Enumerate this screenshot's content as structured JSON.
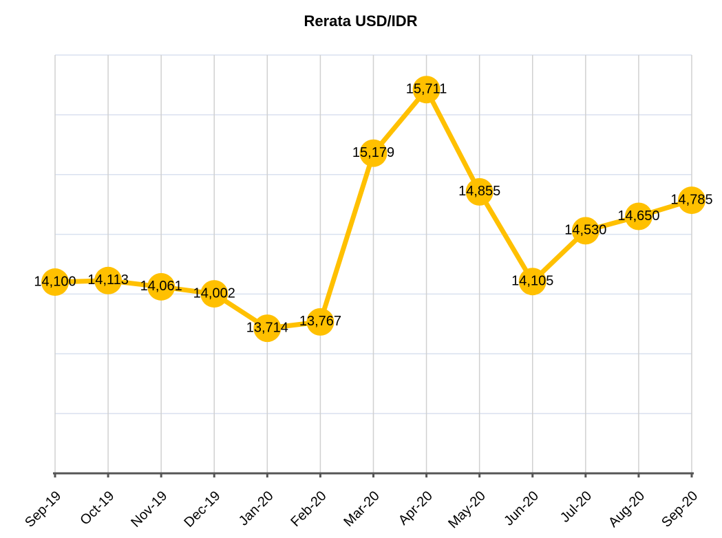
{
  "chart_data": {
    "type": "line",
    "title": "Rerata USD/IDR",
    "categories": [
      "Sep-19",
      "Oct-19",
      "Nov-19",
      "Dec-19",
      "Jan-20",
      "Feb-20",
      "Mar-20",
      "Apr-20",
      "May-20",
      "Jun-20",
      "Jul-20",
      "Aug-20",
      "Sep-20"
    ],
    "series": [
      {
        "name": "USD/IDR",
        "color": "#ffc000",
        "values": [
          14100,
          14113,
          14061,
          14002,
          13714,
          13767,
          15179,
          15711,
          14855,
          14105,
          14530,
          14650,
          14785
        ],
        "value_labels": [
          "14,100",
          "14,113",
          "14,061",
          "14,002",
          "13,714",
          "13,767",
          "15,179",
          "15,711",
          "14,855",
          "14,105",
          "14,530",
          "14,650",
          "14,785"
        ]
      }
    ],
    "ylim": [
      12500,
      16000
    ],
    "yticks": [
      12500,
      13000,
      13500,
      14000,
      14500,
      15000,
      15500,
      16000
    ],
    "grid": true
  }
}
